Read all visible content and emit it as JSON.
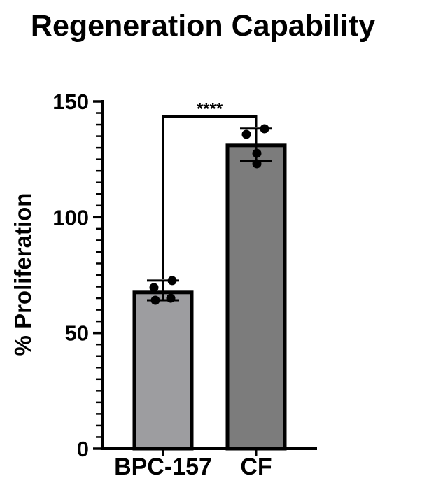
{
  "chart_data": {
    "type": "bar",
    "title": "Regeneration Capability",
    "ylabel": "% Proliferation",
    "xlabel": "",
    "categories": [
      "BPC-157",
      "CF"
    ],
    "values": [
      67.5,
      131
    ],
    "bar_colors": [
      "#9d9da0",
      "#7c7c7c"
    ],
    "bar_border_color": "#000000",
    "error_bars": [
      {
        "low": 64.1,
        "high": 72.6
      },
      {
        "low": 124.3,
        "high": 138.3
      }
    ],
    "points": [
      [
        72.6,
        69.6,
        65.0,
        64.1
      ],
      [
        138.2,
        135.8,
        127.6,
        123.1
      ]
    ],
    "point_dx": [
      [
        13,
        -13,
        11,
        -11
      ],
      [
        12,
        -14,
        1,
        1
      ]
    ],
    "point_color": "#000000",
    "ylim": [
      0,
      150
    ],
    "y_major_ticks": [
      0,
      50,
      100,
      150
    ],
    "y_minor_step": 5,
    "significance": {
      "label": "****",
      "between": [
        "BPC-157",
        "CF"
      ],
      "bracket_value": 143.5
    },
    "grid": false,
    "legend": false,
    "axis_color": "#000000"
  }
}
